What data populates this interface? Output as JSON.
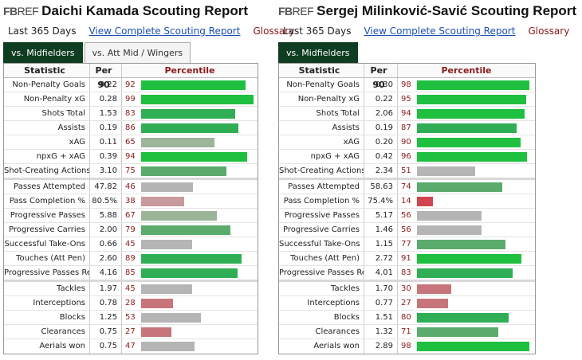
{
  "colors": {
    "tier_top": "#1fbf3f",
    "tier_high": "#2fae56",
    "tier_mid": "#5aab6c",
    "tier_avg": "#9bb49a",
    "tier_neutral": "#b5b5b5",
    "tier_below": "#c8999d",
    "tier_low": "#c7757a",
    "tier_bottom": "#d0444f"
  },
  "reports": [
    {
      "logo": {
        "mark": "FB",
        "text": "REF"
      },
      "title": "Daichi Kamada Scouting Report",
      "period": "Last 365 Days",
      "complete_link": "View Complete Scouting Report",
      "glossary": "Glossary",
      "tabs": [
        {
          "label": "vs. Midfielders",
          "active": true
        },
        {
          "label": "vs. Att Mid / Wingers",
          "active": false
        }
      ],
      "headers": {
        "statistic": "Statistic",
        "per90": "Per 90",
        "percentile": "Percentile"
      },
      "groups": [
        [
          {
            "stat": "Non-Penalty Goals",
            "per90": "0.22",
            "pct": 92
          },
          {
            "stat": "Non-Penalty xG",
            "per90": "0.28",
            "pct": 99
          },
          {
            "stat": "Shots Total",
            "per90": "1.53",
            "pct": 83
          },
          {
            "stat": "Assists",
            "per90": "0.19",
            "pct": 86
          },
          {
            "stat": "xAG",
            "per90": "0.11",
            "pct": 65
          },
          {
            "stat": "npxG + xAG",
            "per90": "0.39",
            "pct": 94
          },
          {
            "stat": "Shot-Creating Actions",
            "per90": "3.10",
            "pct": 75
          }
        ],
        [
          {
            "stat": "Passes Attempted",
            "per90": "47.82",
            "pct": 46
          },
          {
            "stat": "Pass Completion %",
            "per90": "80.5%",
            "pct": 38
          },
          {
            "stat": "Progressive Passes",
            "per90": "5.88",
            "pct": 67
          },
          {
            "stat": "Progressive Carries",
            "per90": "2.00",
            "pct": 79
          },
          {
            "stat": "Successful Take-Ons",
            "per90": "0.66",
            "pct": 45
          },
          {
            "stat": "Touches (Att Pen)",
            "per90": "2.60",
            "pct": 89
          },
          {
            "stat": "Progressive Passes Rec",
            "per90": "4.16",
            "pct": 85
          }
        ],
        [
          {
            "stat": "Tackles",
            "per90": "1.97",
            "pct": 45
          },
          {
            "stat": "Interceptions",
            "per90": "0.78",
            "pct": 28
          },
          {
            "stat": "Blocks",
            "per90": "1.25",
            "pct": 53
          },
          {
            "stat": "Clearances",
            "per90": "0.75",
            "pct": 27
          },
          {
            "stat": "Aerials won",
            "per90": "0.75",
            "pct": 47
          }
        ]
      ]
    },
    {
      "logo": {
        "mark": "FB",
        "text": "REF"
      },
      "title": "Sergej Milinković-Savić Scouting Report",
      "period": "Last 365 Days",
      "complete_link": "View Complete Scouting Report",
      "glossary": "Glossary",
      "tabs": [
        {
          "label": "vs. Midfielders",
          "active": true
        }
      ],
      "headers": {
        "statistic": "Statistic",
        "per90": "Per 90",
        "percentile": "Percentile"
      },
      "groups": [
        [
          {
            "stat": "Non-Penalty Goals",
            "per90": "0.30",
            "pct": 98
          },
          {
            "stat": "Non-Penalty xG",
            "per90": "0.22",
            "pct": 95
          },
          {
            "stat": "Shots Total",
            "per90": "2.06",
            "pct": 94
          },
          {
            "stat": "Assists",
            "per90": "0.19",
            "pct": 87
          },
          {
            "stat": "xAG",
            "per90": "0.20",
            "pct": 90
          },
          {
            "stat": "npxG + xAG",
            "per90": "0.42",
            "pct": 96
          },
          {
            "stat": "Shot-Creating Actions",
            "per90": "2.34",
            "pct": 51
          }
        ],
        [
          {
            "stat": "Passes Attempted",
            "per90": "58.63",
            "pct": 74
          },
          {
            "stat": "Pass Completion %",
            "per90": "75.4%",
            "pct": 14
          },
          {
            "stat": "Progressive Passes",
            "per90": "5.17",
            "pct": 56
          },
          {
            "stat": "Progressive Carries",
            "per90": "1.46",
            "pct": 56
          },
          {
            "stat": "Successful Take-Ons",
            "per90": "1.15",
            "pct": 77
          },
          {
            "stat": "Touches (Att Pen)",
            "per90": "2.72",
            "pct": 91
          },
          {
            "stat": "Progressive Passes Rec",
            "per90": "4.01",
            "pct": 83
          }
        ],
        [
          {
            "stat": "Tackles",
            "per90": "1.70",
            "pct": 30
          },
          {
            "stat": "Interceptions",
            "per90": "0.77",
            "pct": 27
          },
          {
            "stat": "Blocks",
            "per90": "1.51",
            "pct": 80
          },
          {
            "stat": "Clearances",
            "per90": "1.32",
            "pct": 71
          },
          {
            "stat": "Aerials won",
            "per90": "2.89",
            "pct": 98
          }
        ]
      ]
    }
  ]
}
